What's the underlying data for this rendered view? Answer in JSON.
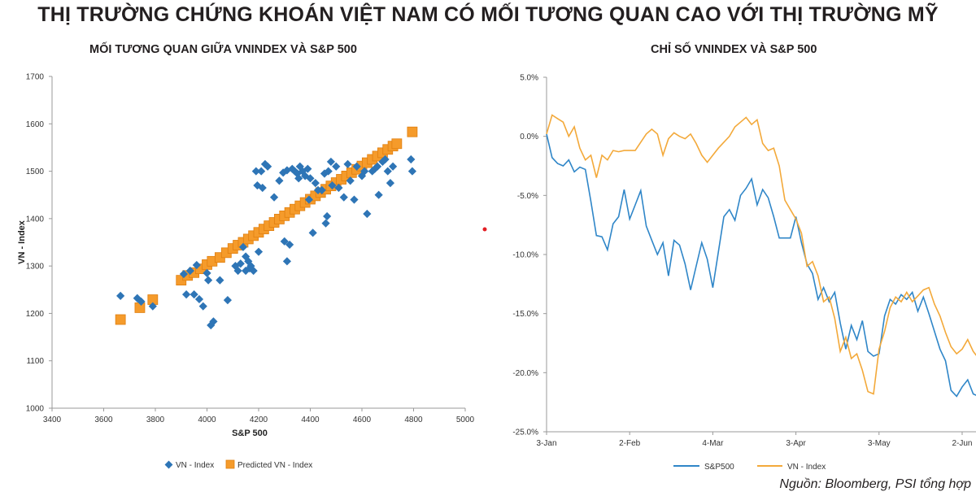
{
  "page": {
    "main_title": "THỊ TRƯỜNG CHỨNG KHOÁN VIỆT NAM CÓ MỐI TƯƠNG QUAN CAO VỚI THỊ TRƯỜNG MỸ",
    "source": "Nguồn: Bloomberg, PSI tổng hợp"
  },
  "colors": {
    "blue": "#2e75b6",
    "orange": "#f59b2b",
    "line_blue": "#2f86c8",
    "line_orange": "#f3a93a",
    "dot": "#e31e24"
  },
  "chart_data": [
    {
      "type": "scatter",
      "title": "MỐI TƯƠNG QUAN GIỮA VNINDEX VÀ S&P 500",
      "xlabel": "S&P 500",
      "ylabel": "VN - Index",
      "xlim": [
        3400,
        5000
      ],
      "ylim": [
        1000,
        1700
      ],
      "xticks": [
        "3400",
        "3600",
        "3800",
        "4000",
        "4200",
        "4400",
        "4600",
        "4800",
        "5000"
      ],
      "yticks": [
        "1000",
        "1100",
        "1200",
        "1300",
        "1400",
        "1500",
        "1600",
        "1700"
      ],
      "series": [
        {
          "name": "VN - Index",
          "marker": "diamond",
          "points": [
            [
              3665,
              1237
            ],
            [
              3730,
              1232
            ],
            [
              3745,
              1225
            ],
            [
              3790,
              1215
            ],
            [
              3910,
              1283
            ],
            [
              3935,
              1290
            ],
            [
              3920,
              1240
            ],
            [
              3950,
              1240
            ],
            [
              3960,
              1302
            ],
            [
              3970,
              1230
            ],
            [
              3985,
              1215
            ],
            [
              4000,
              1285
            ],
            [
              4005,
              1270
            ],
            [
              4015,
              1175
            ],
            [
              4025,
              1183
            ],
            [
              4050,
              1270
            ],
            [
              4080,
              1228
            ],
            [
              4110,
              1300
            ],
            [
              4120,
              1290
            ],
            [
              4130,
              1305
            ],
            [
              4140,
              1340
            ],
            [
              4150,
              1290
            ],
            [
              4160,
              1310
            ],
            [
              4170,
              1300
            ],
            [
              4180,
              1290
            ],
            [
              4190,
              1500
            ],
            [
              4195,
              1470
            ],
            [
              4210,
              1500
            ],
            [
              4215,
              1465
            ],
            [
              4225,
              1515
            ],
            [
              4235,
              1510
            ],
            [
              4150,
              1320
            ],
            [
              4165,
              1295
            ],
            [
              4200,
              1330
            ],
            [
              4260,
              1445
            ],
            [
              4280,
              1480
            ],
            [
              4295,
              1497
            ],
            [
              4300,
              1352
            ],
            [
              4310,
              1310
            ],
            [
              4320,
              1345
            ],
            [
              4310,
              1502
            ],
            [
              4330,
              1505
            ],
            [
              4340,
              1500
            ],
            [
              4350,
              1495
            ],
            [
              4355,
              1485
            ],
            [
              4360,
              1510
            ],
            [
              4370,
              1500
            ],
            [
              4380,
              1490
            ],
            [
              4390,
              1505
            ],
            [
              4395,
              1440
            ],
            [
              4400,
              1485
            ],
            [
              4410,
              1370
            ],
            [
              4420,
              1475
            ],
            [
              4430,
              1460
            ],
            [
              4445,
              1460
            ],
            [
              4455,
              1495
            ],
            [
              4460,
              1390
            ],
            [
              4465,
              1405
            ],
            [
              4470,
              1500
            ],
            [
              4480,
              1520
            ],
            [
              4485,
              1470
            ],
            [
              4500,
              1510
            ],
            [
              4510,
              1465
            ],
            [
              4530,
              1445
            ],
            [
              4545,
              1515
            ],
            [
              4555,
              1480
            ],
            [
              4570,
              1440
            ],
            [
              4580,
              1510
            ],
            [
              4600,
              1490
            ],
            [
              4610,
              1500
            ],
            [
              4620,
              1410
            ],
            [
              4640,
              1500
            ],
            [
              4650,
              1505
            ],
            [
              4660,
              1510
            ],
            [
              4665,
              1450
            ],
            [
              4680,
              1520
            ],
            [
              4690,
              1525
            ],
            [
              4700,
              1500
            ],
            [
              4710,
              1475
            ],
            [
              4720,
              1510
            ],
            [
              4790,
              1525
            ],
            [
              4795,
              1500
            ]
          ]
        },
        {
          "name": "Predicted VN - Index",
          "marker": "square",
          "points": [
            [
              3665,
              1187
            ],
            [
              3740,
              1212
            ],
            [
              3790,
              1229
            ],
            [
              3900,
              1270
            ],
            [
              3925,
              1280
            ],
            [
              3950,
              1286
            ],
            [
              3975,
              1294
            ],
            [
              4000,
              1303
            ],
            [
              4020,
              1310
            ],
            [
              4050,
              1318
            ],
            [
              4075,
              1328
            ],
            [
              4100,
              1337
            ],
            [
              4120,
              1344
            ],
            [
              4140,
              1350
            ],
            [
              4160,
              1357
            ],
            [
              4180,
              1364
            ],
            [
              4200,
              1371
            ],
            [
              4220,
              1378
            ],
            [
              4240,
              1385
            ],
            [
              4260,
              1392
            ],
            [
              4280,
              1399
            ],
            [
              4300,
              1406
            ],
            [
              4320,
              1413
            ],
            [
              4340,
              1420
            ],
            [
              4360,
              1427
            ],
            [
              4380,
              1434
            ],
            [
              4400,
              1441
            ],
            [
              4420,
              1448
            ],
            [
              4440,
              1455
            ],
            [
              4460,
              1462
            ],
            [
              4480,
              1469
            ],
            [
              4500,
              1476
            ],
            [
              4520,
              1483
            ],
            [
              4540,
              1490
            ],
            [
              4560,
              1497
            ],
            [
              4580,
              1504
            ],
            [
              4600,
              1511
            ],
            [
              4620,
              1518
            ],
            [
              4640,
              1525
            ],
            [
              4660,
              1532
            ],
            [
              4680,
              1539
            ],
            [
              4700,
              1546
            ],
            [
              4720,
              1553
            ],
            [
              4735,
              1558
            ],
            [
              4795,
              1583
            ]
          ]
        }
      ],
      "legend": [
        "VN - Index",
        "Predicted VN - Index"
      ]
    },
    {
      "type": "line",
      "title": "CHỈ SỐ VNINDEX VÀ S&P 500",
      "xlabel": "",
      "ylabel": "",
      "ylim": [
        -25,
        5
      ],
      "yticks": [
        "5.0%",
        "0.0%",
        "-5.0%",
        "-10.0%",
        "-15.0%",
        "-20.0%",
        "-25.0%"
      ],
      "xlim": [
        0,
        155
      ],
      "xticks": [
        {
          "pos": 0,
          "label": "3-Jan"
        },
        {
          "pos": 30,
          "label": "2-Feb"
        },
        {
          "pos": 60,
          "label": "4-Mar"
        },
        {
          "pos": 90,
          "label": "3-Apr"
        },
        {
          "pos": 120,
          "label": "3-May"
        },
        {
          "pos": 150,
          "label": "2-Jun"
        }
      ],
      "series": [
        {
          "name": "S&P500",
          "x": [
            0,
            2,
            4,
            6,
            8,
            10,
            12,
            14,
            16,
            18,
            20,
            22,
            24,
            26,
            28,
            30,
            32,
            34,
            36,
            38,
            40,
            42,
            44,
            46,
            48,
            50,
            52,
            54,
            56,
            58,
            60,
            62,
            64,
            66,
            68,
            70,
            72,
            74,
            76,
            78,
            80,
            82,
            84,
            86,
            88,
            90,
            92,
            94,
            96,
            98,
            100,
            102,
            104,
            106,
            108,
            110,
            112,
            114,
            116,
            118,
            120,
            122,
            124,
            126,
            128,
            130,
            132,
            134,
            136,
            138,
            140,
            142,
            144,
            146,
            148,
            150,
            152,
            154,
            156
          ],
          "values": [
            0.2,
            -1.8,
            -2.3,
            -2.5,
            -2.0,
            -3.0,
            -2.6,
            -2.8,
            -5.5,
            -8.4,
            -8.5,
            -9.6,
            -7.4,
            -6.8,
            -4.5,
            -7.0,
            -5.8,
            -4.6,
            -7.6,
            -8.8,
            -10.0,
            -9.0,
            -11.8,
            -8.8,
            -9.2,
            -10.8,
            -13.0,
            -11.0,
            -9.0,
            -10.4,
            -12.8,
            -9.8,
            -6.8,
            -6.2,
            -7.1,
            -5.0,
            -4.4,
            -3.6,
            -5.8,
            -4.5,
            -5.2,
            -6.8,
            -8.6,
            -8.6,
            -8.6,
            -6.8,
            -9.0,
            -10.8,
            -11.6,
            -13.8,
            -12.8,
            -14.0,
            -13.2,
            -15.8,
            -18.0,
            -16.0,
            -17.2,
            -15.6,
            -18.2,
            -18.6,
            -18.4,
            -15.2,
            -13.8,
            -14.2,
            -13.4,
            -13.8,
            -13.2,
            -14.8,
            -13.6,
            -15.0,
            -16.5,
            -18.0,
            -19.0,
            -21.5,
            -22.0,
            -21.2,
            -20.6,
            -21.8,
            -22.0
          ]
        },
        {
          "name": "VN - Index",
          "x": [
            0,
            2,
            4,
            6,
            8,
            10,
            12,
            14,
            16,
            18,
            20,
            22,
            24,
            26,
            28,
            30,
            32,
            34,
            36,
            38,
            40,
            42,
            44,
            46,
            48,
            50,
            52,
            54,
            56,
            58,
            60,
            62,
            64,
            66,
            68,
            70,
            72,
            74,
            76,
            78,
            80,
            82,
            84,
            86,
            88,
            90,
            92,
            94,
            96,
            98,
            100,
            102,
            104,
            106,
            108,
            110,
            112,
            114,
            116,
            118,
            120,
            122,
            124,
            126,
            128,
            130,
            132,
            134,
            136,
            138,
            140,
            142,
            144,
            146,
            148,
            150,
            152,
            154,
            156
          ],
          "values": [
            0.2,
            1.8,
            1.5,
            1.2,
            0.0,
            0.8,
            -1.0,
            -2.0,
            -1.6,
            -3.5,
            -1.6,
            -2.0,
            -1.2,
            -1.3,
            -1.2,
            -1.2,
            -1.2,
            -0.5,
            0.2,
            0.6,
            0.2,
            -1.6,
            -0.2,
            0.3,
            0.0,
            -0.2,
            0.2,
            -0.6,
            -1.6,
            -2.2,
            -1.6,
            -1.0,
            -0.5,
            0.0,
            0.8,
            1.2,
            1.6,
            1.0,
            1.4,
            -0.6,
            -1.2,
            -1.0,
            -2.5,
            -5.4,
            -6.2,
            -7.0,
            -8.2,
            -11.0,
            -10.6,
            -11.8,
            -14.0,
            -13.6,
            -15.4,
            -18.2,
            -17.0,
            -18.8,
            -18.4,
            -19.8,
            -21.6,
            -21.8,
            -18.0,
            -16.5,
            -14.5,
            -13.6,
            -14.0,
            -13.2,
            -14.0,
            -13.5,
            -13.0,
            -12.8,
            -14.2,
            -15.2,
            -16.6,
            -17.8,
            -18.4,
            -18.0,
            -17.2,
            -18.2,
            -18.8
          ]
        }
      ],
      "legend": [
        "S&P500",
        "VN - Index"
      ]
    }
  ]
}
